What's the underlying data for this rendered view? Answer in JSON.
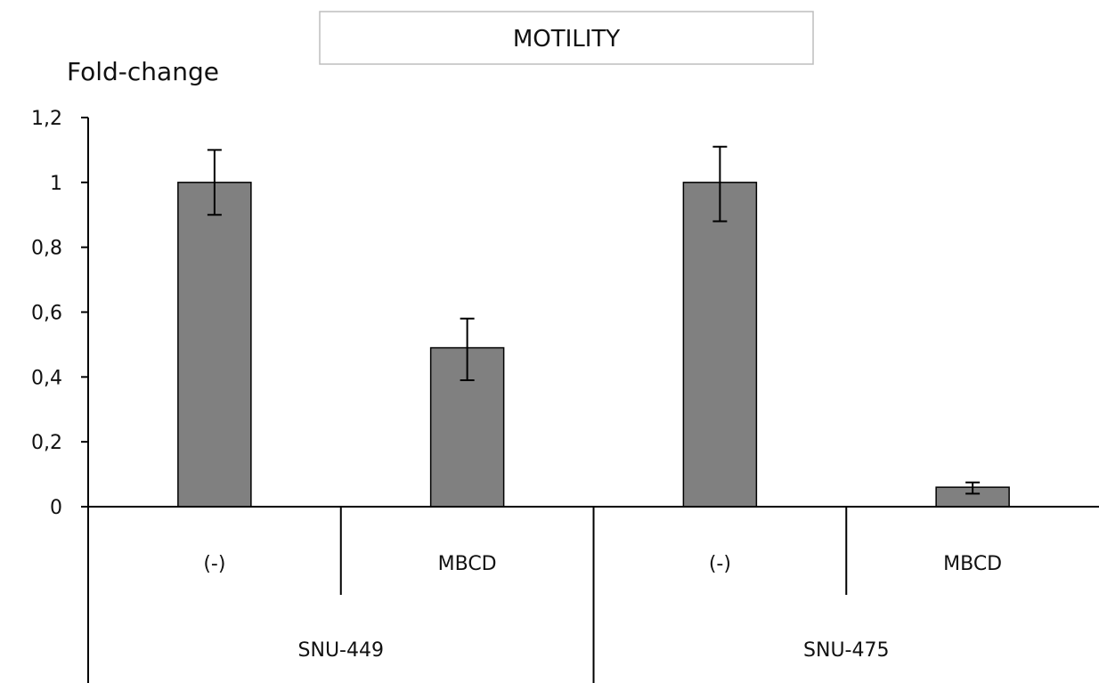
{
  "chart_data": {
    "type": "bar",
    "title": "MOTILITY",
    "ylabel": "Fold-change",
    "xlabel": "",
    "ylim": [
      0,
      1.2
    ],
    "yticks": [
      "0",
      "0,2",
      "0,4",
      "0,6",
      "0,8",
      "1",
      "1,2"
    ],
    "categories": [
      "(-)",
      "MBCD",
      "(-)",
      "MBCD"
    ],
    "groups": [
      {
        "label": "SNU-449",
        "categories": [
          "(-)",
          "MBCD"
        ]
      },
      {
        "label": "SNU-475",
        "categories": [
          "(-)",
          "MBCD"
        ]
      }
    ],
    "values": [
      1.0,
      0.49,
      1.0,
      0.06
    ],
    "error_low": [
      0.9,
      0.39,
      0.88,
      0.04
    ],
    "error_high": [
      1.1,
      0.58,
      1.11,
      0.075
    ],
    "grid": false,
    "bar_color": "#808080"
  }
}
